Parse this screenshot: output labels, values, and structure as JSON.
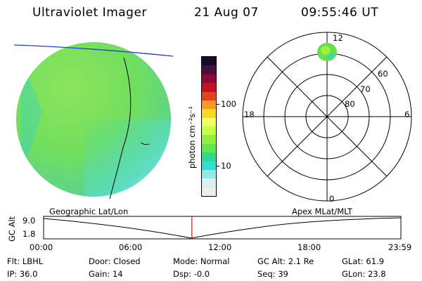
{
  "header": {
    "instrument": "Ultraviolet Imager",
    "date": "21 Aug 07",
    "time": "09:55:46 UT"
  },
  "colorbar": {
    "unit_label": "photon cm⁻²s⁻¹",
    "ticks": [
      "100",
      "10"
    ],
    "colors": [
      "#1a0a2a",
      "#4b0e3f",
      "#8b0a3a",
      "#c41020",
      "#e8401a",
      "#f59a20",
      "#f8d820",
      "#f0ff60",
      "#c8ff40",
      "#90f040",
      "#60e850",
      "#30d890",
      "#30e0d0",
      "#90e8e8",
      "#d8f0f0",
      "#eeeeee"
    ]
  },
  "polar_plot": {
    "lat_labels": [
      "60",
      "70",
      "80"
    ],
    "mlt_labels": {
      "top": "12",
      "left": "18",
      "right": "6",
      "bottom": "0"
    }
  },
  "timeline": {
    "left_caption": "Geographic Lat/Lon",
    "right_caption": "Apex MLat/MLT",
    "axis_label": "GC Alt",
    "y_labels": [
      "9.0",
      "1.8"
    ],
    "x_labels": [
      "00:00",
      "06:00",
      "12:00",
      "18:00",
      "23:59"
    ],
    "current_fraction": 0.415
  },
  "status": {
    "row1": [
      {
        "label": "Flt:",
        "value": "LBHL"
      },
      {
        "label": "Door:",
        "value": "Closed"
      },
      {
        "label": "Mode:",
        "value": "Normal"
      },
      {
        "label": "GC Alt:",
        "value": "2.1 Re"
      },
      {
        "label": "GLat:",
        "value": "61.9"
      }
    ],
    "row2": [
      {
        "label": "IP:",
        "value": "36.0"
      },
      {
        "label": "Gain:",
        "value": "14"
      },
      {
        "label": "Dsp:",
        "value": "-0.0"
      },
      {
        "label": "Seq:",
        "value": "39"
      },
      {
        "label": "GLon:",
        "value": "23.8"
      }
    ]
  }
}
